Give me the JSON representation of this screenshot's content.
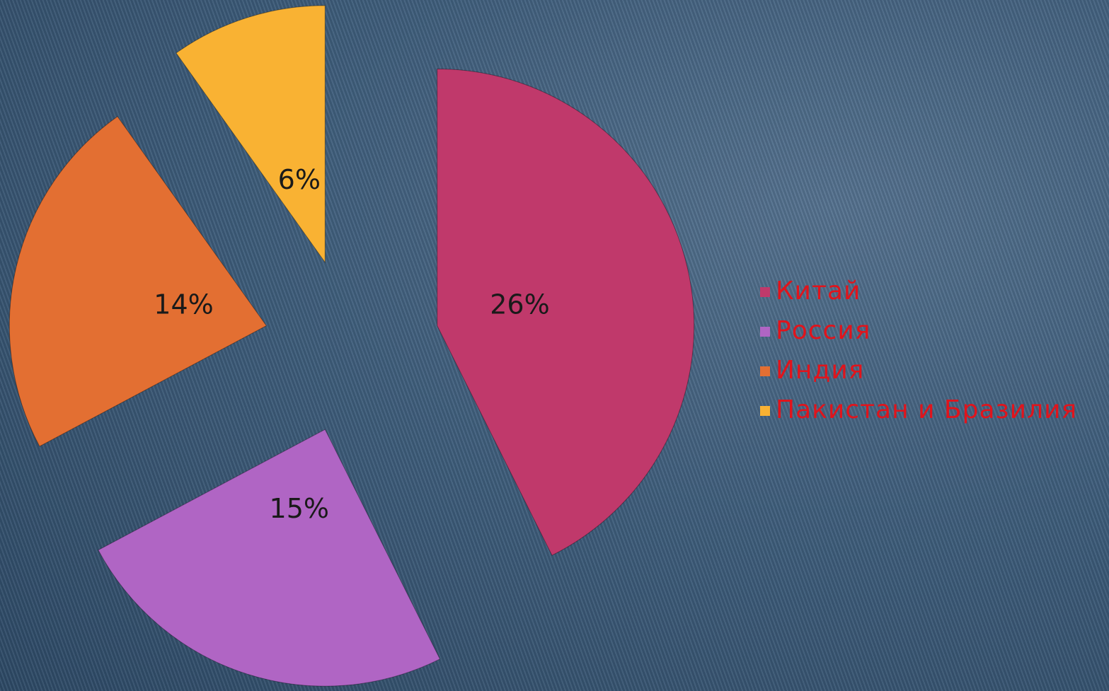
{
  "chart_data": {
    "type": "pie",
    "categories": [
      "Китай",
      "Россия",
      "Индия",
      "Пакистан и Бразилия"
    ],
    "values": [
      26,
      15,
      14,
      6
    ],
    "value_labels": [
      "26%",
      "15%",
      "14%",
      "6%"
    ],
    "colors": [
      "#c0396b",
      "#b065c4",
      "#e36f32",
      "#f9b233"
    ],
    "legend": "right"
  }
}
